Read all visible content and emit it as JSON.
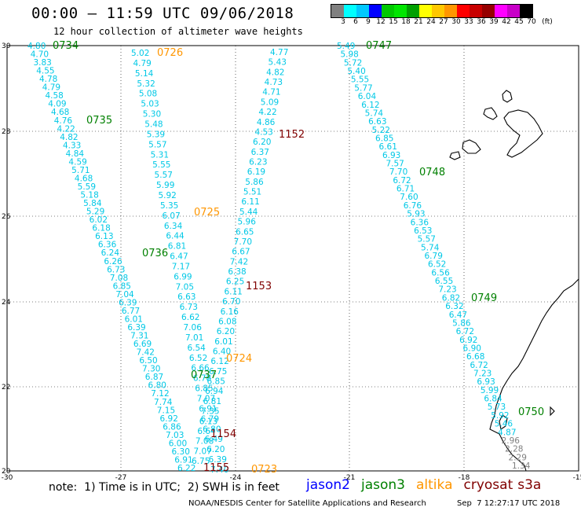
{
  "header": {
    "title": "00:00 – 11:59 UTC 09/06/2018",
    "subtitle": "12 hour collection of altimeter wave heights"
  },
  "legend": {
    "colors": [
      "#808080",
      "#00ffff",
      "#00c8ff",
      "#0000ff",
      "#00c800",
      "#00e600",
      "#00a000",
      "#ffff00",
      "#ffc800",
      "#ff9600",
      "#ff0000",
      "#c80000",
      "#960000",
      "#ff00ff",
      "#c800c8",
      "#000000"
    ],
    "labels": [
      "3",
      "6",
      "9",
      "12",
      "15",
      "18",
      "21",
      "24",
      "27",
      "30",
      "33",
      "36",
      "39",
      "42",
      "45",
      "70",
      "(ft)"
    ]
  },
  "axes": {
    "x_labels": [
      "-30",
      "-27",
      "-24",
      "-21",
      "-18",
      "-15"
    ],
    "y_labels": [
      "30",
      "28",
      "26",
      "24",
      "22",
      "20"
    ]
  },
  "tracks": {
    "track1_values": [
      "4.80",
      "4.70",
      "3.83",
      "4.55",
      "4.78",
      "4.79",
      "4.58",
      "4.09",
      "4.68",
      "4.76",
      "4.22",
      "4.82",
      "4.33",
      "4.84",
      "4.59",
      "5.71",
      "4.68",
      "5.59",
      "5.18",
      "5.84",
      "5.29",
      "6.02",
      "6.18",
      "6.13",
      "6.36",
      "6.24",
      "6.26",
      "6.73",
      "7.08",
      "6.85",
      "7.04",
      "6.39",
      "6.77",
      "6.01",
      "6.39",
      "7.31",
      "6.69",
      "7.42",
      "6.50",
      "7.30",
      "6.87",
      "6.80",
      "7.12",
      "7.74",
      "7.15",
      "6.92",
      "6.86",
      "7.03",
      "6.00",
      "6.30",
      "6.91",
      "6.22"
    ],
    "track2_values": [
      "5.02",
      "4.79",
      "5.14",
      "5.32",
      "5.08",
      "5.03",
      "5.30",
      "5.48",
      "5.39",
      "5.57",
      "5.31",
      "5.55",
      "5.57",
      "5.99",
      "5.92",
      "5.35",
      "6.07",
      "6.34",
      "6.44",
      "6.81",
      "6.47",
      "7.17",
      "6.99",
      "7.05",
      "6.63",
      "6.73",
      "6.62",
      "7.06",
      "7.01",
      "6.54",
      "6.52",
      "6.66",
      "6.78",
      "6.85",
      "7.07",
      "6.91",
      "6.79",
      "6.80",
      "6.49",
      "6.20",
      "6.39",
      "7.40"
    ],
    "track3_values": [
      "4.77",
      "5.43",
      "4.82",
      "4.73",
      "4.71",
      "5.09",
      "4.22",
      "4.86",
      "4.53",
      "6.20",
      "6.37",
      "6.23",
      "6.19",
      "5.86",
      "5.51",
      "6.11",
      "5.44",
      "5.96",
      "6.65",
      "7.70",
      "6.67",
      "7.42",
      "6.38",
      "6.25",
      "6.11",
      "6.70",
      "6.16",
      "6.08",
      "6.20",
      "6.01",
      "6.40",
      "6.12",
      "6.75",
      "6.85",
      "6.94",
      "6.81",
      "7.35",
      "6.13",
      "6.64",
      "7.08",
      "7.07",
      "6.75"
    ],
    "track4_values": [
      "5.49",
      "5.98",
      "5.72",
      "5.40",
      "5.55",
      "5.77",
      "6.04",
      "6.12",
      "5.74",
      "6.63",
      "5.22",
      "6.85",
      "6.61",
      "6.93",
      "7.57",
      "7.70",
      "6.72",
      "6.71",
      "7.60",
      "6.76",
      "5.93",
      "6.36",
      "6.53",
      "5.57",
      "5.74",
      "6.79",
      "6.52",
      "6.56",
      "6.55",
      "7.23",
      "6.82",
      "6.32",
      "6.47",
      "5.86",
      "6.72",
      "6.92",
      "6.90",
      "6.68",
      "6.72",
      "7.23",
      "6.93",
      "5.99",
      "6.84",
      "5.73",
      "5.92",
      "5.46",
      "4.87",
      "2.96",
      "2.28",
      "2.29",
      "1.34"
    ],
    "pass_labels": [
      {
        "text": "0734",
        "sat": "jason3"
      },
      {
        "text": "0735",
        "sat": "jason3"
      },
      {
        "text": "0736",
        "sat": "jason3"
      },
      {
        "text": "0737",
        "sat": "jason3"
      },
      {
        "text": "0726",
        "sat": "altika"
      },
      {
        "text": "0725",
        "sat": "altika"
      },
      {
        "text": "0724",
        "sat": "altika"
      },
      {
        "text": "0723",
        "sat": "altika"
      },
      {
        "text": "1152",
        "sat": "s3a"
      },
      {
        "text": "1153",
        "sat": "s3a"
      },
      {
        "text": "1154",
        "sat": "s3a"
      },
      {
        "text": "1155",
        "sat": "s3a"
      },
      {
        "text": "0747",
        "sat": "jason3"
      },
      {
        "text": "0748",
        "sat": "jason3"
      },
      {
        "text": "0749",
        "sat": "jason3"
      },
      {
        "text": "0750",
        "sat": "jason3"
      }
    ]
  },
  "colors": {
    "wave_label": "#00c8e6",
    "jason2": "#0000ff",
    "jason3": "#008000",
    "altika": "#ff9600",
    "s3a": "#800000",
    "land": "#000000",
    "grid": "#000000",
    "low_wave": "#808080"
  },
  "footer": {
    "note": "note:  1) Time is in UTC;  2) SWH is in feet",
    "satellites": [
      {
        "name": "jason2",
        "color_key": "jason2"
      },
      {
        "name": "jason3",
        "color_key": "jason3"
      },
      {
        "name": "altika",
        "color_key": "altika"
      },
      {
        "name": "cryosat",
        "color_key": "s3a"
      },
      {
        "name": "s3a",
        "color_key": "s3a"
      }
    ],
    "credit": "NOAA/NESDIS Center for Satellite Applications and Research",
    "timestamp": "Sep  7 12:27:17 UTC 2018"
  }
}
